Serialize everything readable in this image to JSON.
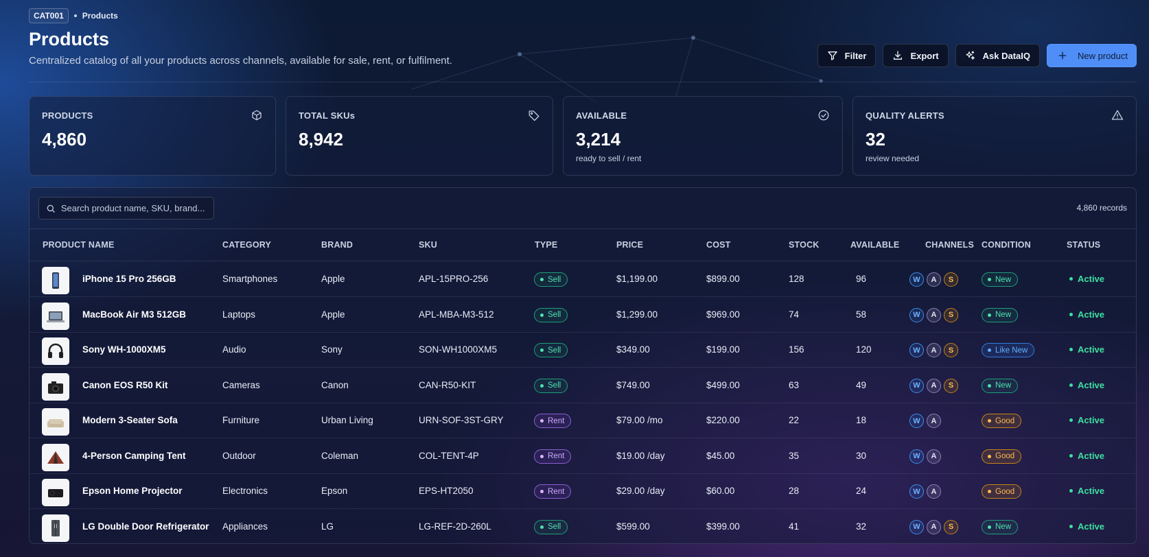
{
  "breadcrumb": {
    "code": "CAT001",
    "current": "Products"
  },
  "header": {
    "title": "Products",
    "subtitle": "Centralized catalog of all your products across channels, available for sale, rent, or fulfilment."
  },
  "actions": {
    "filter": "Filter",
    "export": "Export",
    "ask": "Ask DataIQ",
    "new_product": "New product"
  },
  "stats": [
    {
      "label": "PRODUCTS",
      "value": "4,860",
      "note": "",
      "icon": "box-icon"
    },
    {
      "label": "TOTAL SKUs",
      "value": "8,942",
      "note": "",
      "icon": "tag-icon"
    },
    {
      "label": "AVAILABLE",
      "value": "3,214",
      "note": "ready to sell / rent",
      "icon": "check-circle-icon"
    },
    {
      "label": "QUALITY ALERTS",
      "value": "32",
      "note": "review needed",
      "icon": "alert-triangle-icon"
    }
  ],
  "table": {
    "search_placeholder": "Search product name, SKU, brand...",
    "records": "4,860 records",
    "columns": [
      "PRODUCT NAME",
      "CATEGORY",
      "BRAND",
      "SKU",
      "TYPE",
      "PRICE",
      "COST",
      "STOCK",
      "AVAILABLE",
      "CHANNELS",
      "CONDITION",
      "STATUS"
    ],
    "rows": [
      {
        "name": "iPhone 15 Pro 256GB",
        "category": "Smartphones",
        "brand": "Apple",
        "sku": "APL-15PRO-256",
        "type": "Sell",
        "price": "$1,199.00",
        "cost": "$899.00",
        "stock": "128",
        "available": "96",
        "channels": [
          "W",
          "A",
          "S"
        ],
        "condition": "New",
        "status": "Active",
        "thumb": "phone-thumbnail"
      },
      {
        "name": "MacBook Air M3 512GB",
        "category": "Laptops",
        "brand": "Apple",
        "sku": "APL-MBA-M3-512",
        "type": "Sell",
        "price": "$1,299.00",
        "cost": "$969.00",
        "stock": "74",
        "available": "58",
        "channels": [
          "W",
          "A",
          "S"
        ],
        "condition": "New",
        "status": "Active",
        "thumb": "laptop-thumbnail"
      },
      {
        "name": "Sony WH-1000XM5",
        "category": "Audio",
        "brand": "Sony",
        "sku": "SON-WH1000XM5",
        "type": "Sell",
        "price": "$349.00",
        "cost": "$199.00",
        "stock": "156",
        "available": "120",
        "channels": [
          "W",
          "A",
          "S"
        ],
        "condition": "Like New",
        "status": "Active",
        "thumb": "headphones-thumbnail"
      },
      {
        "name": "Canon EOS R50 Kit",
        "category": "Cameras",
        "brand": "Canon",
        "sku": "CAN-R50-KIT",
        "type": "Sell",
        "price": "$749.00",
        "cost": "$499.00",
        "stock": "63",
        "available": "49",
        "channels": [
          "W",
          "A",
          "S"
        ],
        "condition": "New",
        "status": "Active",
        "thumb": "camera-thumbnail"
      },
      {
        "name": "Modern 3-Seater Sofa",
        "category": "Furniture",
        "brand": "Urban Living",
        "sku": "URN-SOF-3ST-GRY",
        "type": "Rent",
        "price": "$79.00 /mo",
        "cost": "$220.00",
        "stock": "22",
        "available": "18",
        "channels": [
          "W",
          "A"
        ],
        "condition": "Good",
        "status": "Active",
        "thumb": "sofa-thumbnail"
      },
      {
        "name": "4-Person Camping Tent",
        "category": "Outdoor",
        "brand": "Coleman",
        "sku": "COL-TENT-4P",
        "type": "Rent",
        "price": "$19.00 /day",
        "cost": "$45.00",
        "stock": "35",
        "available": "30",
        "channels": [
          "W",
          "A"
        ],
        "condition": "Good",
        "status": "Active",
        "thumb": "tent-thumbnail"
      },
      {
        "name": "Epson Home Projector",
        "category": "Electronics",
        "brand": "Epson",
        "sku": "EPS-HT2050",
        "type": "Rent",
        "price": "$29.00 /day",
        "cost": "$60.00",
        "stock": "28",
        "available": "24",
        "channels": [
          "W",
          "A"
        ],
        "condition": "Good",
        "status": "Active",
        "thumb": "projector-thumbnail"
      },
      {
        "name": "LG Double Door Refrigerator",
        "category": "Appliances",
        "brand": "LG",
        "sku": "LG-REF-2D-260L",
        "type": "Sell",
        "price": "$599.00",
        "cost": "$399.00",
        "stock": "41",
        "available": "32",
        "channels": [
          "W",
          "A",
          "S"
        ],
        "condition": "New",
        "status": "Active",
        "thumb": "fridge-thumbnail"
      }
    ]
  },
  "colors": {
    "accent": "#4f8ef7",
    "active": "#3ee0a0",
    "sell": "#4fe0b0",
    "rent": "#cfa9ff",
    "good": "#ffbc4d",
    "like_new": "#5fb0ff"
  }
}
